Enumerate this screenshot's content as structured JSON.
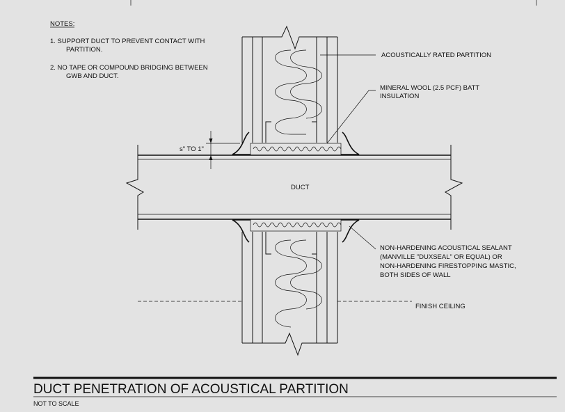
{
  "notes": {
    "heading": "NOTES:",
    "items": [
      {
        "line1": "1. SUPPORT DUCT TO PREVENT CONTACT WITH",
        "line2": "PARTITION."
      },
      {
        "line1": "2. NO TAPE OR COMPOUND BRIDGING BETWEEN",
        "line2": "GWB AND DUCT."
      }
    ]
  },
  "callouts": {
    "partition": "ACOUSTICALLY RATED PARTITION",
    "insulation_line1": "MINERAL WOOL (2.5 PCF) BATT",
    "insulation_line2": "INSULATION",
    "gap": "s\" TO 1\"",
    "duct": "DUCT",
    "sealant_line1": "NON-HARDENING ACOUSTICAL SEALANT",
    "sealant_line2": "(MANVILLE \"DUXSEAL\" OR EQUAL) OR",
    "sealant_line3": "NON-HARDENING FIRESTOPPING MASTIC,",
    "sealant_line4": "BOTH SIDES OF WALL",
    "ceiling": "FINISH CEILING"
  },
  "title": {
    "main": "DUCT PENETRATION OF ACOUSTICAL PARTITION",
    "scale": "NOT TO SCALE"
  }
}
